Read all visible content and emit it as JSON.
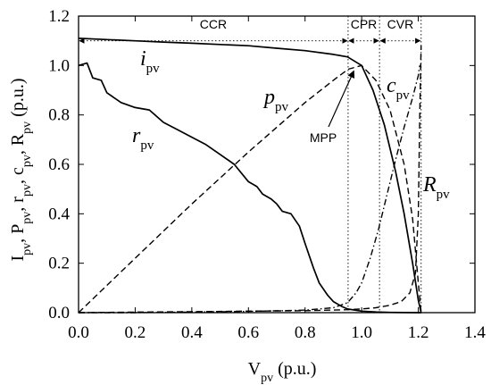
{
  "chart_data": {
    "type": "line",
    "xlabel": {
      "main": "V",
      "sub": "pv",
      "tail": " (p.u.)"
    },
    "ylabel": [
      {
        "main": "I",
        "sub": "pv"
      },
      {
        "main": ", P",
        "sub": "pv"
      },
      {
        "main": ", r",
        "sub": "pv"
      },
      {
        "main": ", c",
        "sub": "pv"
      },
      {
        "main": ", R",
        "sub": "pv"
      },
      {
        "main": " (p.u.)",
        "sub": ""
      }
    ],
    "xlim": [
      0,
      1.4
    ],
    "ylim": [
      0,
      1.2
    ],
    "xticks": [
      0.0,
      0.2,
      0.4,
      0.6,
      0.8,
      1.0,
      1.2,
      1.4
    ],
    "yticks": [
      0.0,
      0.2,
      0.4,
      0.6,
      0.8,
      1.0,
      1.2
    ],
    "xtick_labels": [
      "0.0",
      "0.2",
      "0.4",
      "0.6",
      "0.8",
      "1.0",
      "1.2",
      "1.4"
    ],
    "ytick_labels": [
      "0.0",
      "0.2",
      "0.4",
      "0.6",
      "0.8",
      "1.0",
      "1.2"
    ],
    "grid": false,
    "regions": [
      {
        "label": "CCR",
        "from": 0.0,
        "to": 0.952
      },
      {
        "label": "CPR",
        "from": 0.952,
        "to": 1.063
      },
      {
        "label": "CVR",
        "from": 1.063,
        "to": 1.21
      }
    ],
    "region_arrow_y": 1.1,
    "series": [
      {
        "name": "i",
        "sub": "pv",
        "style": "solid",
        "x": [
          0,
          0.1,
          0.2,
          0.3,
          0.4,
          0.5,
          0.6,
          0.7,
          0.8,
          0.9,
          0.95,
          1.0,
          1.04,
          1.08,
          1.12,
          1.15,
          1.18,
          1.2,
          1.21
        ],
        "y": [
          1.11,
          1.105,
          1.1,
          1.095,
          1.09,
          1.085,
          1.08,
          1.07,
          1.06,
          1.045,
          1.035,
          1.0,
          0.9,
          0.76,
          0.57,
          0.4,
          0.2,
          0.05,
          0.0
        ]
      },
      {
        "name": "p",
        "sub": "pv",
        "style": "dash",
        "x": [
          0,
          0.2,
          0.4,
          0.6,
          0.8,
          0.9,
          0.952,
          1.0,
          1.05,
          1.1,
          1.15,
          1.18,
          1.2,
          1.21
        ],
        "y": [
          0,
          0.22,
          0.44,
          0.65,
          0.85,
          0.94,
          0.985,
          1.0,
          0.94,
          0.82,
          0.6,
          0.38,
          0.12,
          0.0
        ]
      },
      {
        "name": "r",
        "sub": "pv",
        "style": "solid",
        "x": [
          0,
          0.03,
          0.05,
          0.08,
          0.1,
          0.15,
          0.2,
          0.25,
          0.3,
          0.35,
          0.4,
          0.45,
          0.5,
          0.55,
          0.6,
          0.63,
          0.65,
          0.68,
          0.7,
          0.72,
          0.75,
          0.78,
          0.8,
          0.83,
          0.85,
          0.88,
          0.9,
          0.93,
          0.95,
          1.0,
          1.05,
          1.1,
          1.15,
          1.2,
          1.21
        ],
        "y": [
          1.0,
          1.01,
          0.95,
          0.94,
          0.89,
          0.85,
          0.83,
          0.82,
          0.77,
          0.74,
          0.71,
          0.68,
          0.64,
          0.6,
          0.53,
          0.51,
          0.48,
          0.46,
          0.44,
          0.41,
          0.4,
          0.35,
          0.28,
          0.18,
          0.12,
          0.07,
          0.045,
          0.025,
          0.015,
          0.006,
          0.003,
          0.001,
          0.0005,
          0.0001,
          0.0
        ]
      },
      {
        "name": "c",
        "sub": "pv",
        "style": "dashdot",
        "x": [
          0,
          0.2,
          0.4,
          0.6,
          0.8,
          0.9,
          0.95,
          0.98,
          1.0,
          1.03,
          1.06,
          1.09,
          1.12,
          1.15,
          1.18,
          1.2,
          1.205
        ],
        "y": [
          0,
          0.0,
          0.002,
          0.005,
          0.01,
          0.02,
          0.04,
          0.08,
          0.12,
          0.22,
          0.34,
          0.48,
          0.62,
          0.75,
          0.87,
          0.96,
          1.0
        ]
      },
      {
        "name": "R",
        "sub": "pv",
        "style": "dash",
        "x": [
          0,
          0.2,
          0.4,
          0.6,
          0.8,
          0.95,
          1.0,
          1.05,
          1.1,
          1.14,
          1.17,
          1.19,
          1.2,
          1.205,
          1.21
        ],
        "y": [
          0,
          0.002,
          0.004,
          0.006,
          0.008,
          0.012,
          0.015,
          0.02,
          0.03,
          0.045,
          0.08,
          0.16,
          0.4,
          0.8,
          1.08
        ]
      }
    ],
    "curve_labels": [
      {
        "series": "i",
        "main": "i",
        "sub": "pv"
      },
      {
        "series": "p",
        "main": "p",
        "sub": "pv"
      },
      {
        "series": "r",
        "main": "r",
        "sub": "pv"
      },
      {
        "series": "c",
        "main": "c",
        "sub": "pv"
      },
      {
        "series": "R",
        "main": "R",
        "sub": "pv"
      }
    ],
    "annotations": [
      {
        "text": "MPP",
        "x": 0.985,
        "y": 1.0
      }
    ]
  }
}
